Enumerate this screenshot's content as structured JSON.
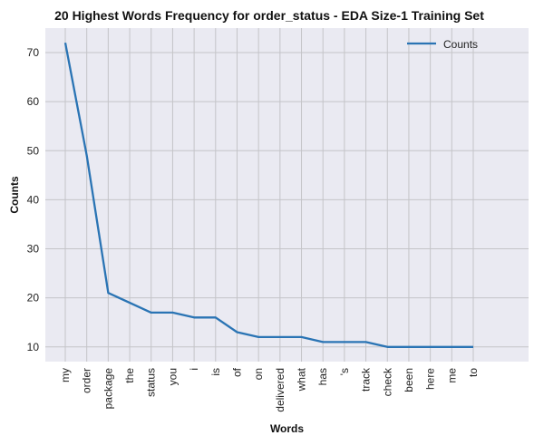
{
  "chart_data": {
    "type": "line",
    "title": "20 Highest Words Frequency for order_status - EDA Size-1 Training Set",
    "xlabel": "Words",
    "ylabel": "Counts",
    "categories": [
      "my",
      "order",
      "package",
      "the",
      "status",
      "you",
      "i",
      "is",
      "of",
      "on",
      "delivered",
      "what",
      "has",
      "'s",
      "track",
      "check",
      "been",
      "here",
      "me",
      "to"
    ],
    "series": [
      {
        "name": "Counts",
        "values": [
          72,
          49,
          21,
          19,
          17,
          17,
          16,
          16,
          13,
          12,
          12,
          12,
          11,
          11,
          11,
          10,
          10,
          10,
          10,
          10
        ]
      }
    ],
    "ylim": [
      7,
      75
    ],
    "yticks": [
      10,
      20,
      30,
      40,
      50,
      60,
      70
    ],
    "grid": true,
    "legend": "top-right",
    "colors": {
      "line": "#2a74b4",
      "plot_bg": "#eaeaf2",
      "grid": "#c4c4c8"
    }
  }
}
